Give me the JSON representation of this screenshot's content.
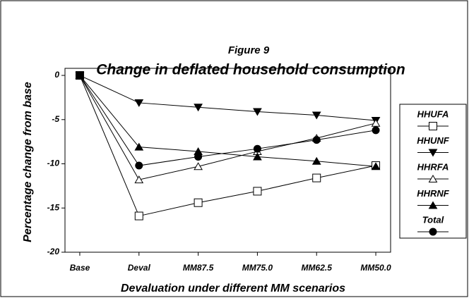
{
  "chart_data": {
    "type": "line",
    "title": "Figure 9",
    "subtitle": "Change in deflated household consumption",
    "x_label": "Devaluation under different MM scenarios",
    "y_label": "Percentage change from base",
    "categories": [
      "Base",
      "Deval",
      "MM87.5",
      "MM75.0",
      "MM62.5",
      "MM50.0"
    ],
    "series": [
      {
        "name": "HHUFA",
        "color": "#000000",
        "marker": "square-open",
        "values": [
          0,
          -15.9,
          -14.4,
          -13.1,
          -11.6,
          -10.2
        ]
      },
      {
        "name": "HHUNF",
        "color": "#000000",
        "marker": "triangle-down-filled",
        "values": [
          0,
          -3.1,
          -3.6,
          -4.1,
          -4.5,
          -5.1
        ]
      },
      {
        "name": "HHRFA",
        "color": "#000000",
        "marker": "triangle-up-open",
        "values": [
          0,
          -11.8,
          -10.3,
          -8.6,
          -7.1,
          -5.4
        ]
      },
      {
        "name": "HHRNF",
        "color": "#000000",
        "marker": "triangle-up-filled",
        "values": [
          0,
          -8.1,
          -8.6,
          -9.2,
          -9.7,
          -10.3
        ]
      },
      {
        "name": "Total",
        "color": "#000000",
        "marker": "circle-filled",
        "values": [
          0,
          -10.2,
          -9.2,
          -8.3,
          -7.3,
          -6.2
        ]
      }
    ],
    "ylim": [
      -20,
      0.8
    ],
    "yticks": [
      0,
      -5,
      -10,
      -15,
      -20
    ],
    "grid": false,
    "legend": "right"
  }
}
